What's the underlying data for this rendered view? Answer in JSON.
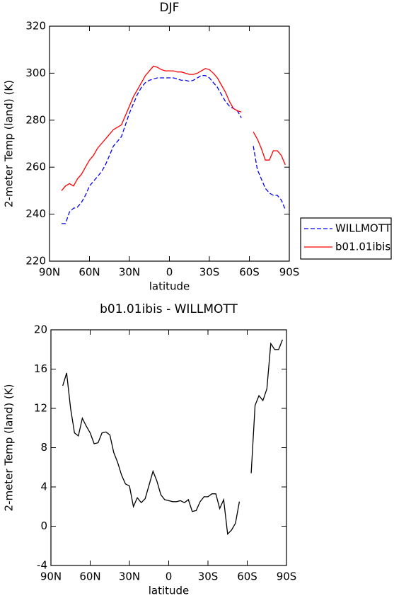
{
  "chart_data": [
    {
      "type": "line",
      "title": "DJF",
      "xlabel": "latitude",
      "ylabel": "2-meter Temp (land) (K)",
      "x": [
        81,
        78,
        75,
        72,
        69,
        66,
        63,
        60,
        57,
        54,
        51,
        48,
        45,
        42,
        39,
        36,
        33,
        30,
        27,
        24,
        21,
        18,
        15,
        12,
        9,
        6,
        3,
        0,
        -3,
        -6,
        -9,
        -12,
        -15,
        -18,
        -21,
        -24,
        -27,
        -30,
        -33,
        -36,
        -39,
        -42,
        -45,
        -48,
        -51,
        -54,
        -57,
        -60,
        -63,
        -66,
        -69,
        -72,
        -75,
        -78,
        -81,
        -84,
        -87
      ],
      "series": [
        {
          "name": "WILLMOTT",
          "color": "#0000ff",
          "linestyle": "dashed",
          "values": [
            236,
            236,
            241,
            242.5,
            243,
            245,
            248,
            252,
            254,
            256,
            258,
            261,
            265,
            269,
            271,
            273,
            278,
            283,
            287,
            291,
            294,
            296,
            297,
            297.5,
            298,
            298,
            298,
            298,
            298,
            297.5,
            297,
            297,
            296.5,
            297,
            298,
            299,
            299,
            298,
            296,
            294,
            291,
            288,
            286,
            285,
            284,
            281,
            null,
            null,
            269,
            259,
            255,
            251,
            249,
            248,
            248,
            246,
            242
          ]
        },
        {
          "name": "b01.01ibis",
          "color": "#ff0000",
          "linestyle": "solid",
          "values": [
            250,
            252,
            253,
            252,
            255,
            257,
            260,
            263,
            265,
            268,
            270,
            272,
            274,
            276,
            277,
            278,
            282,
            286,
            290,
            293,
            296,
            299,
            301,
            303,
            302.5,
            301.5,
            301,
            301,
            301,
            300.5,
            300.5,
            300,
            299.5,
            299.5,
            300,
            301,
            302,
            301.5,
            300,
            298,
            295,
            292,
            288,
            285,
            284,
            283.5,
            null,
            null,
            275,
            272,
            268,
            263,
            263,
            267,
            267,
            265,
            261
          ]
        }
      ],
      "xlim": [
        90,
        -90
      ],
      "xticks": [
        {
          "value": 90,
          "label": "90N"
        },
        {
          "value": 60,
          "label": "60N"
        },
        {
          "value": 30,
          "label": "30N"
        },
        0,
        {
          "value": -30,
          "label": "30S"
        },
        {
          "value": -60,
          "label": "60S"
        },
        {
          "value": -90,
          "label": "90S"
        }
      ],
      "ylim": [
        220,
        320
      ],
      "yticks": [
        220,
        240,
        260,
        280,
        300,
        320
      ],
      "legend": "right"
    },
    {
      "type": "line",
      "title": "b01.01ibis - WILLMOTT",
      "xlabel": "latitude",
      "ylabel": "2-meter Temp (land) (K)",
      "x": [
        81,
        78,
        75,
        72,
        69,
        66,
        63,
        60,
        57,
        54,
        51,
        48,
        45,
        42,
        39,
        36,
        33,
        30,
        27,
        24,
        21,
        18,
        15,
        12,
        9,
        6,
        3,
        0,
        -3,
        -6,
        -9,
        -12,
        -15,
        -18,
        -21,
        -24,
        -27,
        -30,
        -33,
        -36,
        -39,
        -42,
        -45,
        -48,
        -51,
        -54,
        -57,
        -60,
        -63,
        -66,
        -69,
        -72,
        -75,
        -78,
        -81,
        -84,
        -87
      ],
      "color": "#000000",
      "values": [
        14.3,
        15.6,
        12,
        9.5,
        9.2,
        11,
        10.2,
        9.5,
        8.4,
        8.5,
        9.5,
        9.6,
        9.3,
        7.5,
        6.5,
        5.2,
        4.3,
        4.1,
        2,
        2.9,
        2.4,
        2.8,
        4.2,
        5.6,
        4.6,
        3.2,
        2.7,
        2.6,
        2.5,
        2.5,
        2.6,
        2.4,
        2.7,
        1.5,
        1.6,
        2.5,
        3,
        3,
        3.3,
        3.3,
        1.8,
        2.7,
        -0.8,
        -0.4,
        0.3,
        2.5,
        null,
        null,
        5.4,
        12.3,
        13.3,
        12.8,
        14,
        18.6,
        18,
        18,
        19
      ],
      "xlim": [
        90,
        -90
      ],
      "xticks": [
        {
          "value": 90,
          "label": "90N"
        },
        {
          "value": 60,
          "label": "60N"
        },
        {
          "value": 30,
          "label": "30N"
        },
        0,
        {
          "value": -30,
          "label": "30S"
        },
        {
          "value": -60,
          "label": "60S"
        },
        {
          "value": -90,
          "label": "90S"
        }
      ],
      "ylim": [
        -4,
        20
      ],
      "yticks": [
        -4,
        0,
        4,
        8,
        12,
        16,
        20
      ]
    }
  ]
}
